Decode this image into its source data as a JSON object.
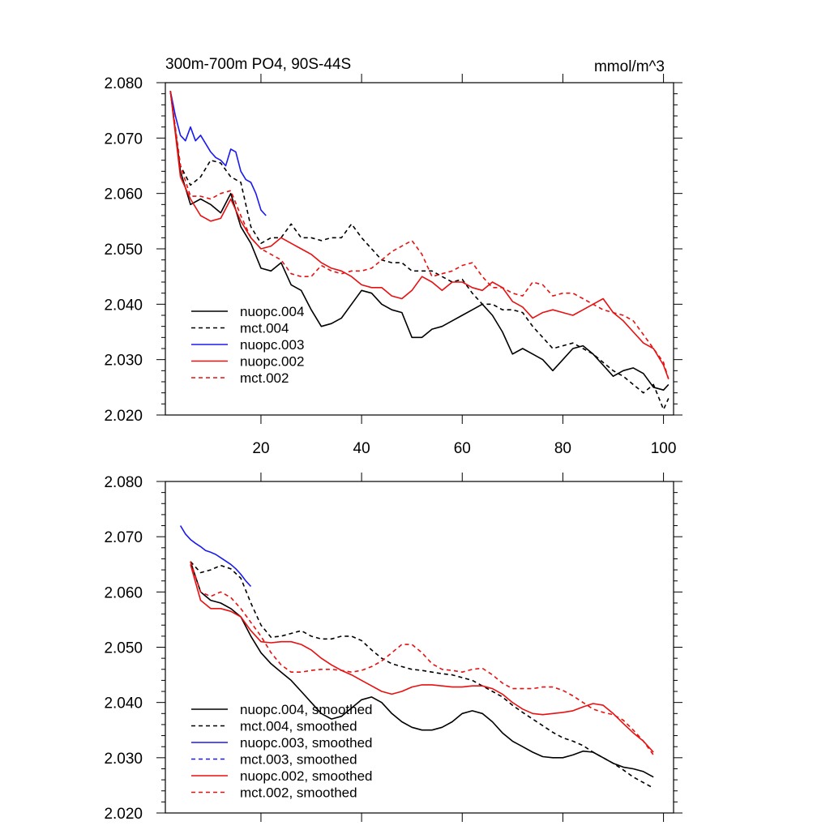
{
  "figure": {
    "title": "300m-700m PO4, 90S-44S",
    "units": "mmol/m^3"
  },
  "chart_data": [
    {
      "type": "line",
      "title": "300m-700m PO4, 90S-44S",
      "units_label": "mmol/m^3",
      "xlim": [
        1,
        102
      ],
      "ylim": [
        2.02,
        2.08
      ],
      "x_ticks": [
        20,
        40,
        60,
        80,
        100
      ],
      "x_tick_labels": [
        "20",
        "40",
        "60",
        "80",
        "100"
      ],
      "y_ticks": [
        2.02,
        2.03,
        2.04,
        2.05,
        2.06,
        2.07,
        2.08
      ],
      "y_tick_labels": [
        "2.020",
        "2.030",
        "2.040",
        "2.050",
        "2.060",
        "2.070",
        "2.080"
      ],
      "legend": "bottom-left",
      "series": [
        {
          "name": "nuopc.004",
          "color": "#000000",
          "dash": "solid",
          "x": [
            2,
            4,
            6,
            8,
            10,
            12,
            14,
            16,
            18,
            20,
            22,
            24,
            26,
            28,
            30,
            32,
            34,
            36,
            38,
            40,
            42,
            44,
            46,
            48,
            50,
            52,
            54,
            56,
            58,
            60,
            62,
            64,
            66,
            68,
            70,
            72,
            74,
            76,
            78,
            80,
            82,
            84,
            86,
            88,
            90,
            92,
            94,
            96,
            98,
            100,
            101
          ],
          "values": [
            2.0785,
            2.064,
            2.058,
            2.059,
            2.058,
            2.0565,
            2.06,
            2.054,
            2.051,
            2.0465,
            2.046,
            2.0475,
            2.0435,
            2.0425,
            2.039,
            2.036,
            2.0365,
            2.0375,
            2.04,
            2.0425,
            2.042,
            2.04,
            2.039,
            2.0385,
            2.034,
            2.034,
            2.0355,
            2.036,
            2.037,
            2.038,
            2.039,
            2.04,
            2.038,
            2.035,
            2.031,
            2.032,
            2.031,
            2.03,
            2.028,
            2.03,
            2.032,
            2.0325,
            2.031,
            2.029,
            2.027,
            2.028,
            2.0285,
            2.0275,
            2.025,
            2.0245,
            2.0255
          ]
        },
        {
          "name": "mct.004",
          "color": "#000000",
          "dash": "dashed",
          "x": [
            2,
            4,
            6,
            8,
            10,
            12,
            14,
            16,
            18,
            20,
            22,
            24,
            26,
            28,
            30,
            32,
            34,
            36,
            38,
            40,
            42,
            44,
            46,
            48,
            50,
            52,
            54,
            56,
            58,
            60,
            62,
            64,
            66,
            68,
            70,
            72,
            74,
            76,
            78,
            80,
            82,
            84,
            86,
            88,
            90,
            92,
            94,
            96,
            98,
            100,
            101
          ],
          "values": [
            2.0785,
            2.065,
            2.0615,
            2.063,
            2.066,
            2.0655,
            2.063,
            2.062,
            2.054,
            2.051,
            2.052,
            2.052,
            2.0545,
            2.052,
            2.052,
            2.0515,
            2.052,
            2.052,
            2.0545,
            2.052,
            2.05,
            2.048,
            2.0475,
            2.0475,
            2.046,
            2.046,
            2.046,
            2.045,
            2.044,
            2.0445,
            2.042,
            2.04,
            2.04,
            2.039,
            2.039,
            2.0385,
            2.036,
            2.034,
            2.032,
            2.0325,
            2.033,
            2.032,
            2.031,
            2.0295,
            2.028,
            2.027,
            2.0255,
            2.024,
            2.0255,
            2.021,
            2.023
          ]
        },
        {
          "name": "nuopc.003",
          "color": "#1a1af0",
          "dash": "solid",
          "x": [
            2,
            3,
            4,
            5,
            6,
            7,
            8,
            9,
            10,
            11,
            12,
            13,
            14,
            15,
            16,
            17,
            18,
            19,
            20,
            21
          ],
          "values": [
            2.0785,
            2.074,
            2.0705,
            2.0695,
            2.072,
            2.0695,
            2.0705,
            2.069,
            2.0675,
            2.0665,
            2.066,
            2.065,
            2.068,
            2.0675,
            2.064,
            2.0625,
            2.062,
            2.06,
            2.057,
            2.056
          ]
        },
        {
          "name": "nuopc.002",
          "color": "#e81010",
          "dash": "solid",
          "x": [
            2,
            4,
            6,
            8,
            10,
            12,
            14,
            16,
            18,
            20,
            22,
            24,
            26,
            28,
            30,
            32,
            34,
            36,
            38,
            40,
            42,
            44,
            46,
            48,
            50,
            52,
            54,
            56,
            58,
            60,
            62,
            64,
            66,
            68,
            70,
            72,
            74,
            76,
            78,
            80,
            82,
            84,
            86,
            88,
            90,
            92,
            94,
            96,
            98,
            100,
            101
          ],
          "values": [
            2.0785,
            2.063,
            2.059,
            2.056,
            2.055,
            2.0555,
            2.059,
            2.055,
            2.052,
            2.05,
            2.0505,
            2.052,
            2.051,
            2.05,
            2.049,
            2.0475,
            2.0465,
            2.046,
            2.045,
            2.0435,
            2.043,
            2.043,
            2.0415,
            2.041,
            2.0425,
            2.045,
            2.044,
            2.0425,
            2.044,
            2.044,
            2.043,
            2.0425,
            2.044,
            2.043,
            2.0405,
            2.0395,
            2.0375,
            2.0385,
            2.039,
            2.0385,
            2.038,
            2.039,
            2.04,
            2.041,
            2.0385,
            2.037,
            2.035,
            2.033,
            2.032,
            2.029,
            2.0265
          ]
        },
        {
          "name": "mct.002",
          "color": "#e81010",
          "dash": "dashed",
          "x": [
            2,
            4,
            6,
            8,
            10,
            12,
            14,
            16,
            18,
            20,
            22,
            24,
            26,
            28,
            30,
            32,
            34,
            36,
            38,
            40,
            42,
            44,
            46,
            48,
            50,
            52,
            54,
            56,
            58,
            60,
            62,
            64,
            66,
            68,
            70,
            72,
            74,
            76,
            78,
            80,
            82,
            84,
            86,
            88,
            90,
            92,
            94,
            96,
            98,
            100,
            101
          ],
          "values": [
            2.0785,
            2.065,
            2.0595,
            2.0595,
            2.059,
            2.06,
            2.0605,
            2.056,
            2.052,
            2.05,
            2.049,
            2.048,
            2.0455,
            2.045,
            2.045,
            2.047,
            2.046,
            2.0455,
            2.046,
            2.046,
            2.0465,
            2.048,
            2.0495,
            2.0505,
            2.0515,
            2.049,
            2.045,
            2.0455,
            2.046,
            2.047,
            2.0475,
            2.045,
            2.043,
            2.043,
            2.042,
            2.0415,
            2.044,
            2.0435,
            2.0415,
            2.042,
            2.042,
            2.041,
            2.04,
            2.039,
            2.0385,
            2.038,
            2.037,
            2.0345,
            2.032,
            2.0295,
            2.0265
          ]
        }
      ]
    },
    {
      "type": "line",
      "xlim": [
        1,
        102
      ],
      "ylim": [
        2.02,
        2.08
      ],
      "y_ticks": [
        2.02,
        2.03,
        2.04,
        2.05,
        2.06,
        2.07,
        2.08
      ],
      "y_tick_labels": [
        "2.020",
        "2.030",
        "2.040",
        "2.050",
        "2.060",
        "2.070",
        "2.080"
      ],
      "x_ticks": [
        20,
        40,
        60,
        80,
        100
      ],
      "legend": "bottom-left",
      "series": [
        {
          "name": "nuopc.004, smoothed",
          "color": "#000000",
          "dash": "solid",
          "x": [
            6,
            8,
            10,
            12,
            14,
            16,
            18,
            20,
            22,
            24,
            26,
            28,
            30,
            32,
            34,
            36,
            38,
            40,
            42,
            44,
            46,
            48,
            50,
            52,
            54,
            56,
            58,
            60,
            62,
            64,
            66,
            68,
            70,
            72,
            74,
            76,
            78,
            80,
            82,
            84,
            86,
            88,
            90,
            92,
            94,
            96,
            98
          ],
          "values": [
            2.0655,
            2.06,
            2.0585,
            2.058,
            2.057,
            2.0555,
            2.052,
            2.049,
            2.047,
            2.0455,
            2.044,
            2.042,
            2.04,
            2.038,
            2.037,
            2.0375,
            2.039,
            2.0405,
            2.041,
            2.04,
            2.038,
            2.0365,
            2.0355,
            2.035,
            2.035,
            2.0355,
            2.0365,
            2.038,
            2.0385,
            2.038,
            2.0365,
            2.0345,
            2.033,
            2.032,
            2.031,
            2.0302,
            2.03,
            2.03,
            2.0305,
            2.0312,
            2.031,
            2.03,
            2.029,
            2.0283,
            2.028,
            2.0275,
            2.0265
          ]
        },
        {
          "name": "mct.004, smoothed",
          "color": "#000000",
          "dash": "dashed",
          "x": [
            6,
            8,
            10,
            12,
            14,
            16,
            18,
            20,
            22,
            24,
            26,
            28,
            30,
            32,
            34,
            36,
            38,
            40,
            42,
            44,
            46,
            48,
            50,
            52,
            54,
            56,
            58,
            60,
            62,
            64,
            66,
            68,
            70,
            72,
            74,
            76,
            78,
            80,
            82,
            84,
            86,
            88,
            90,
            92,
            94,
            96,
            98
          ],
          "values": [
            2.0655,
            2.0635,
            2.064,
            2.0648,
            2.0642,
            2.0625,
            2.058,
            2.054,
            2.0518,
            2.052,
            2.0525,
            2.053,
            2.052,
            2.0515,
            2.0515,
            2.052,
            2.052,
            2.0512,
            2.0495,
            2.048,
            2.047,
            2.0465,
            2.046,
            2.0458,
            2.0455,
            2.0452,
            2.045,
            2.0445,
            2.044,
            2.043,
            2.042,
            2.041,
            2.0395,
            2.0382,
            2.037,
            2.0358,
            2.0346,
            2.0336,
            2.033,
            2.0322,
            2.031,
            2.03,
            2.029,
            2.0278,
            2.0265,
            2.0255,
            2.0245
          ]
        },
        {
          "name": "nuopc.003, smoothed",
          "color": "#1a1af0",
          "dash": "solid",
          "x": [
            4,
            5,
            6,
            7,
            8,
            9,
            10,
            11,
            12,
            13,
            14,
            15,
            16,
            17,
            18
          ],
          "values": [
            2.072,
            2.0705,
            2.0695,
            2.0688,
            2.0682,
            2.0675,
            2.0672,
            2.0668,
            2.0662,
            2.0656,
            2.065,
            2.0642,
            2.0632,
            2.062,
            2.061
          ]
        },
        {
          "name": "mct.003, smoothed",
          "color": "#1a1af0",
          "dash": "dashed",
          "x": [],
          "values": []
        },
        {
          "name": "nuopc.002, smoothed",
          "color": "#e81010",
          "dash": "solid",
          "x": [
            6,
            8,
            10,
            12,
            14,
            16,
            18,
            20,
            22,
            24,
            26,
            28,
            30,
            32,
            34,
            36,
            38,
            40,
            42,
            44,
            46,
            48,
            50,
            52,
            54,
            56,
            58,
            60,
            62,
            64,
            66,
            68,
            70,
            72,
            74,
            76,
            78,
            80,
            82,
            84,
            86,
            88,
            90,
            92,
            94,
            96,
            98
          ],
          "values": [
            2.065,
            2.0585,
            2.057,
            2.057,
            2.0565,
            2.0555,
            2.053,
            2.051,
            2.0508,
            2.051,
            2.051,
            2.0505,
            2.0495,
            2.048,
            2.0468,
            2.0458,
            2.045,
            2.044,
            2.043,
            2.042,
            2.0415,
            2.042,
            2.0428,
            2.0432,
            2.0432,
            2.043,
            2.0428,
            2.0428,
            2.043,
            2.043,
            2.0425,
            2.0415,
            2.04,
            2.0388,
            2.038,
            2.0378,
            2.038,
            2.0382,
            2.0385,
            2.0392,
            2.0398,
            2.0395,
            2.038,
            2.0362,
            2.0345,
            2.033,
            2.031
          ]
        },
        {
          "name": "mct.002, smoothed",
          "color": "#e81010",
          "dash": "dashed",
          "x": [
            6,
            8,
            10,
            12,
            14,
            16,
            18,
            20,
            22,
            24,
            26,
            28,
            30,
            32,
            34,
            36,
            38,
            40,
            42,
            44,
            46,
            48,
            50,
            52,
            54,
            56,
            58,
            60,
            62,
            64,
            66,
            68,
            70,
            72,
            74,
            76,
            78,
            80,
            82,
            84,
            86,
            88,
            90,
            92,
            94,
            96,
            98
          ],
          "values": [
            2.0655,
            2.06,
            2.0592,
            2.06,
            2.059,
            2.057,
            2.0545,
            2.052,
            2.049,
            2.0468,
            2.0455,
            2.0455,
            2.0458,
            2.046,
            2.046,
            2.0458,
            2.0455,
            2.0458,
            2.0465,
            2.0475,
            2.049,
            2.0505,
            2.0505,
            2.049,
            2.047,
            2.046,
            2.0458,
            2.0455,
            2.046,
            2.0462,
            2.045,
            2.0435,
            2.0425,
            2.0425,
            2.0425,
            2.0428,
            2.0428,
            2.0422,
            2.0412,
            2.04,
            2.0388,
            2.0382,
            2.0378,
            2.0368,
            2.035,
            2.033,
            2.0305
          ]
        }
      ]
    }
  ]
}
